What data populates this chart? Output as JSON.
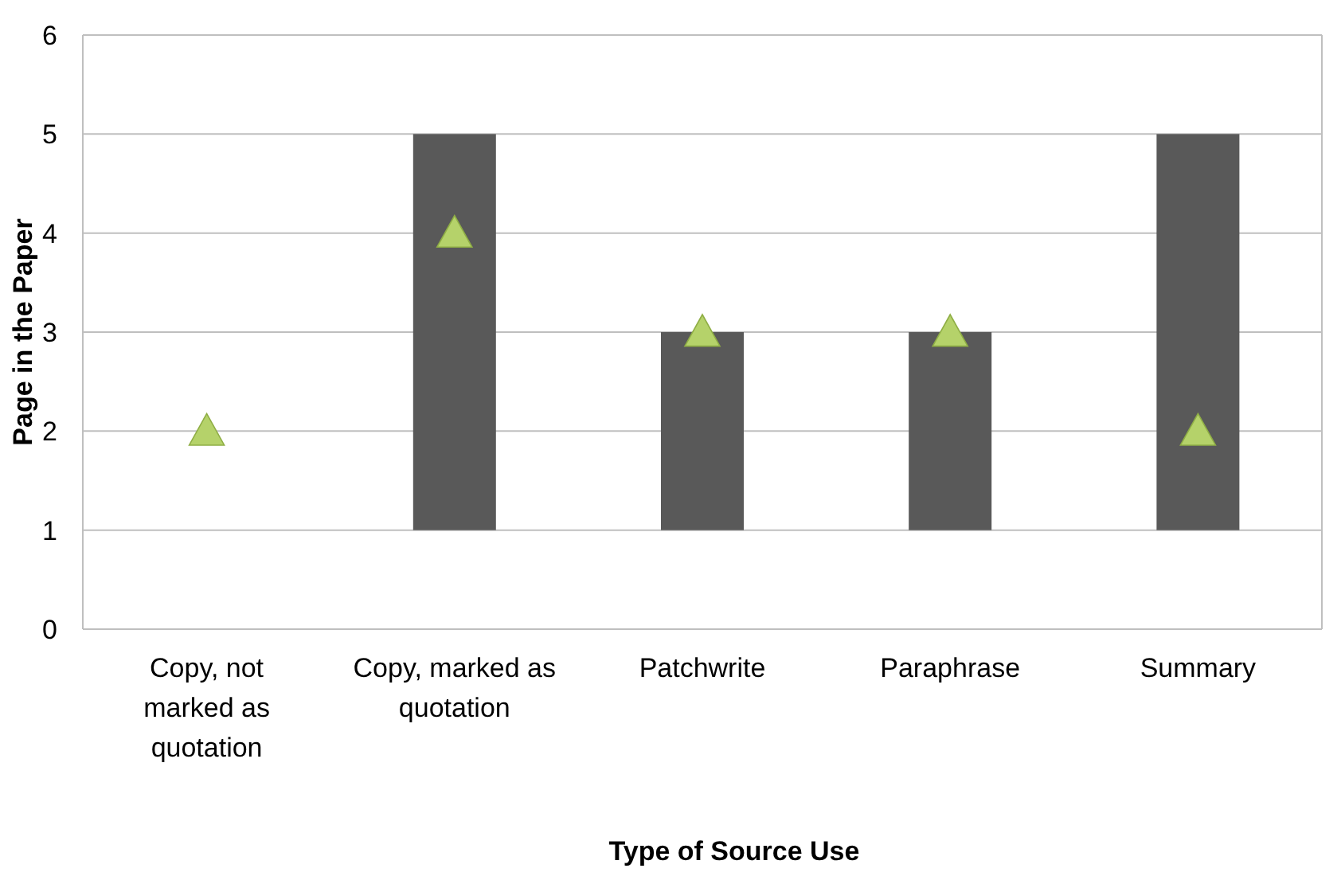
{
  "chart_data": {
    "type": "bar",
    "xlabel": "Type of Source Use",
    "ylabel": "Page in the Paper",
    "categories": [
      "Copy, not marked as quotation",
      "Copy, marked as quotation",
      "Patchwrite",
      "Paraphrase",
      "Summary"
    ],
    "ylim": [
      0,
      6
    ],
    "yticks": [
      0,
      1,
      2,
      3,
      4,
      5,
      6
    ],
    "grid": "y",
    "series": [
      {
        "color": "#595959",
        "base": [
          null,
          1,
          1,
          1,
          1
        ],
        "values": [
          null,
          4,
          2,
          2,
          4
        ]
      },
      {
        "type": "scatter",
        "color": "#b5d26a",
        "marker": "triangle",
        "values": [
          2,
          4,
          3,
          3,
          2
        ]
      }
    ]
  }
}
